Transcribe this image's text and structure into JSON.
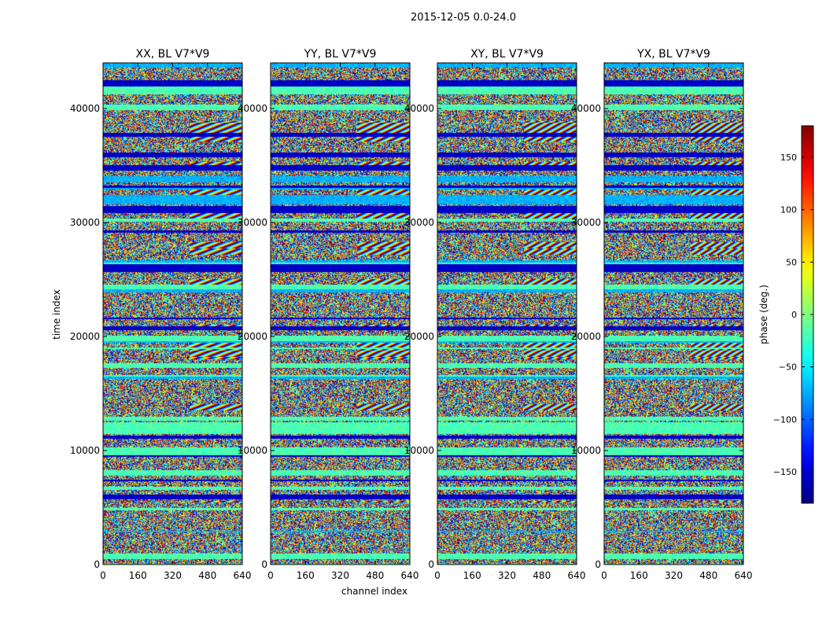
{
  "figure_title": "2015-12-05 0.0-24.0",
  "chart_data": {
    "type": "heatmap",
    "suptitle": "2015-12-05 0.0-24.0",
    "xlabel": "channel index",
    "ylabel": "time index",
    "xlim": [
      0,
      640
    ],
    "ylim": [
      0,
      44000
    ],
    "xticks": [
      0,
      160,
      320,
      480,
      640
    ],
    "yticks": [
      0,
      10000,
      20000,
      30000,
      40000
    ],
    "panels": [
      {
        "title": "XX, BL V7*V9",
        "polarization": "XX",
        "baseline": "V7*V9"
      },
      {
        "title": "YY, BL V7*V9",
        "polarization": "YY",
        "baseline": "V7*V9"
      },
      {
        "title": "XY, BL V7*V9",
        "polarization": "XY",
        "baseline": "V7*V9"
      },
      {
        "title": "YX, BL V7*V9",
        "polarization": "YX",
        "baseline": "V7*V9"
      }
    ],
    "colorbar": {
      "label": "phase (deg.)",
      "range": [
        -180,
        180
      ],
      "ticks": [
        -150,
        -100,
        -50,
        0,
        50,
        100,
        150
      ],
      "colormap": "jet"
    }
  }
}
